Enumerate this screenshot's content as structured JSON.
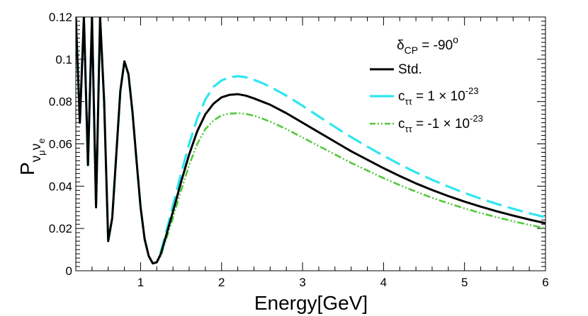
{
  "chart_data": {
    "type": "line",
    "xlabel": "Energy[GeV]",
    "ylabel": {
      "main": "P",
      "sub1": "ν",
      "subsub1": "μ",
      "sub2": "ν",
      "subsub2": "e"
    },
    "xlim": [
      0.2,
      6.0
    ],
    "ylim": [
      0.0,
      0.12
    ],
    "xticks": [
      1,
      2,
      3,
      4,
      5,
      6
    ],
    "xtick_labels": [
      "1",
      "2",
      "3",
      "4",
      "5",
      "6"
    ],
    "yticks": [
      0,
      0.02,
      0.04,
      0.06,
      0.08,
      0.1,
      0.12
    ],
    "ytick_labels": [
      "0",
      "0.02",
      "0.04",
      "0.06",
      "0.08",
      "0.1",
      "0.12"
    ],
    "legend_title": {
      "delta": "δ",
      "sub": "CP",
      "eq": " = -90",
      "sup": "o"
    },
    "legend_position": "top-right",
    "series": [
      {
        "name": "Std.",
        "legend_label": {
          "base": "Std.",
          "sub": "",
          "mid": "",
          "sup": ""
        },
        "color": "#000000",
        "style": "solid",
        "x": [
          0.2,
          0.25,
          0.3,
          0.35,
          0.4,
          0.45,
          0.5,
          0.55,
          0.6,
          0.65,
          0.7,
          0.75,
          0.8,
          0.85,
          0.9,
          0.95,
          1.0,
          1.05,
          1.1,
          1.15,
          1.2,
          1.25,
          1.3,
          1.4,
          1.5,
          1.6,
          1.7,
          1.8,
          1.9,
          2.0,
          2.1,
          2.2,
          2.3,
          2.4,
          2.5,
          2.6,
          2.8,
          3.0,
          3.2,
          3.4,
          3.6,
          3.8,
          4.0,
          4.2,
          4.4,
          4.6,
          4.8,
          5.0,
          5.2,
          5.4,
          5.6,
          5.8,
          6.0
        ],
        "values": [
          0.12,
          0.07,
          0.12,
          0.05,
          0.12,
          0.03,
          0.12,
          0.08,
          0.014,
          0.025,
          0.055,
          0.085,
          0.099,
          0.093,
          0.075,
          0.052,
          0.03,
          0.015,
          0.007,
          0.0035,
          0.004,
          0.008,
          0.0145,
          0.028,
          0.042,
          0.055,
          0.066,
          0.074,
          0.079,
          0.082,
          0.0832,
          0.0835,
          0.0828,
          0.0815,
          0.08,
          0.0785,
          0.0745,
          0.07,
          0.0655,
          0.061,
          0.0565,
          0.0525,
          0.0485,
          0.0448,
          0.0413,
          0.0382,
          0.0353,
          0.0327,
          0.0303,
          0.0281,
          0.0261,
          0.0242,
          0.0225
        ]
      },
      {
        "name": "c_tt = 1×10^-23",
        "legend_label": {
          "base": "c",
          "sub": "ττ",
          "mid": " = 1 × 10",
          "sup": "-23"
        },
        "color": "#2ee6f0",
        "style": "long-dash",
        "x": [
          0.2,
          0.25,
          0.3,
          0.35,
          0.4,
          0.45,
          0.5,
          0.55,
          0.6,
          0.65,
          0.7,
          0.75,
          0.8,
          0.85,
          0.9,
          0.95,
          1.0,
          1.05,
          1.1,
          1.15,
          1.2,
          1.25,
          1.3,
          1.4,
          1.5,
          1.6,
          1.7,
          1.8,
          1.9,
          2.0,
          2.1,
          2.2,
          2.3,
          2.4,
          2.5,
          2.6,
          2.8,
          3.0,
          3.2,
          3.4,
          3.6,
          3.8,
          4.0,
          4.2,
          4.4,
          4.6,
          4.8,
          5.0,
          5.2,
          5.4,
          5.6,
          5.8,
          6.0
        ],
        "values": [
          0.12,
          0.07,
          0.12,
          0.05,
          0.12,
          0.03,
          0.12,
          0.08,
          0.014,
          0.025,
          0.055,
          0.085,
          0.099,
          0.093,
          0.075,
          0.052,
          0.03,
          0.015,
          0.007,
          0.0035,
          0.004,
          0.009,
          0.016,
          0.031,
          0.046,
          0.06,
          0.072,
          0.081,
          0.087,
          0.09,
          0.0915,
          0.092,
          0.0915,
          0.0903,
          0.0888,
          0.087,
          0.0828,
          0.078,
          0.073,
          0.068,
          0.0632,
          0.0587,
          0.0544,
          0.0503,
          0.0465,
          0.043,
          0.0398,
          0.0368,
          0.0341,
          0.0316,
          0.0293,
          0.0272,
          0.0253
        ]
      },
      {
        "name": "c_tt = -1×10^-23",
        "legend_label": {
          "base": "c",
          "sub": "ττ",
          "mid": " = -1 × 10",
          "sup": "-23"
        },
        "color": "#55c83c",
        "style": "dash-dot-dot",
        "x": [
          0.2,
          0.25,
          0.3,
          0.35,
          0.4,
          0.45,
          0.5,
          0.55,
          0.6,
          0.65,
          0.7,
          0.75,
          0.8,
          0.85,
          0.9,
          0.95,
          1.0,
          1.05,
          1.1,
          1.15,
          1.2,
          1.25,
          1.3,
          1.4,
          1.5,
          1.6,
          1.7,
          1.8,
          1.9,
          2.0,
          2.1,
          2.2,
          2.3,
          2.4,
          2.5,
          2.6,
          2.8,
          3.0,
          3.2,
          3.4,
          3.6,
          3.8,
          4.0,
          4.2,
          4.4,
          4.6,
          4.8,
          5.0,
          5.2,
          5.4,
          5.6,
          5.8,
          6.0
        ],
        "values": [
          0.12,
          0.07,
          0.12,
          0.05,
          0.12,
          0.03,
          0.12,
          0.08,
          0.014,
          0.025,
          0.055,
          0.085,
          0.099,
          0.093,
          0.075,
          0.052,
          0.03,
          0.015,
          0.007,
          0.0035,
          0.004,
          0.007,
          0.013,
          0.025,
          0.038,
          0.05,
          0.06,
          0.067,
          0.071,
          0.0735,
          0.0743,
          0.0745,
          0.0742,
          0.0733,
          0.072,
          0.0705,
          0.067,
          0.063,
          0.059,
          0.055,
          0.051,
          0.0474,
          0.0438,
          0.0405,
          0.0374,
          0.0345,
          0.0319,
          0.0295,
          0.0273,
          0.0253,
          0.0234,
          0.0217,
          0.0201
        ]
      }
    ]
  }
}
